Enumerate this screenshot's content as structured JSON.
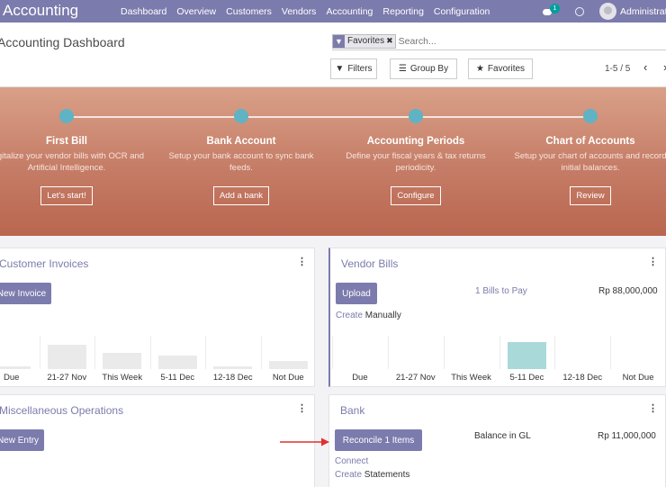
{
  "topbar": {
    "app_title": "Accounting",
    "menu": [
      "Dashboard",
      "Overview",
      "Customers",
      "Vendors",
      "Accounting",
      "Reporting",
      "Configuration"
    ],
    "chat_badge": "1",
    "user_name": "Administrator",
    "color": "#7c7bad"
  },
  "control_panel": {
    "breadcrumb": "Accounting Dashboard",
    "facet_label": "Favorites",
    "search_placeholder": "Search...",
    "filters_label": "Filters",
    "groupby_label": "Group By",
    "favorites_label": "Favorites",
    "pager": "1-5 / 5"
  },
  "onboarding": {
    "steps": [
      {
        "title": "First Bill",
        "desc": "Digitalize your vendor bills with OCR and Artificial Intelligence.",
        "button": "Let's start!"
      },
      {
        "title": "Bank Account",
        "desc": "Setup your bank account to sync bank feeds.",
        "button": "Add a bank"
      },
      {
        "title": "Accounting Periods",
        "desc": "Define your fiscal years & tax returns periodicity.",
        "button": "Configure"
      },
      {
        "title": "Chart of Accounts",
        "desc": "Setup your chart of accounts and record initial balances.",
        "button": "Review"
      }
    ]
  },
  "cards": {
    "customer_invoices": {
      "title": "Customer Invoices",
      "button": "New Invoice",
      "chart_ticks": [
        "Due",
        "21-27 Nov",
        "This Week",
        "5-11 Dec",
        "12-18 Dec",
        "Not Due"
      ]
    },
    "vendor_bills": {
      "title": "Vendor Bills",
      "button": "Upload",
      "stat_label": "1 Bills to Pay",
      "stat_amount": "Rp 88,000,000",
      "create_link": "Create",
      "create_rest": " Manually",
      "chart_ticks": [
        "Due",
        "21-27 Nov",
        "This Week",
        "5-11 Dec",
        "12-18 Dec",
        "Not Due"
      ]
    },
    "misc_operations": {
      "title": "Miscellaneous Operations",
      "button": "New Entry"
    },
    "bank": {
      "title": "Bank",
      "button": "Reconcile 1 Items",
      "stat_label": "Balance in GL",
      "stat_amount": "Rp 11,000,000",
      "connect_link": "Connect",
      "create_link": "Create",
      "create_rest": " Statements"
    }
  },
  "chart_data": [
    {
      "type": "bar",
      "categories": [
        "Due",
        "21-27 Nov",
        "This Week",
        "5-11 Dec",
        "12-18 Dec",
        "Not Due"
      ],
      "values": [
        0.1,
        0.9,
        0.6,
        0.5,
        0.1,
        0.3
      ]
    },
    {
      "type": "bar",
      "categories": [
        "Due",
        "21-27 Nov",
        "This Week",
        "5-11 Dec",
        "12-18 Dec",
        "Not Due"
      ],
      "values": [
        0,
        0,
        0,
        1,
        0,
        0
      ]
    }
  ]
}
